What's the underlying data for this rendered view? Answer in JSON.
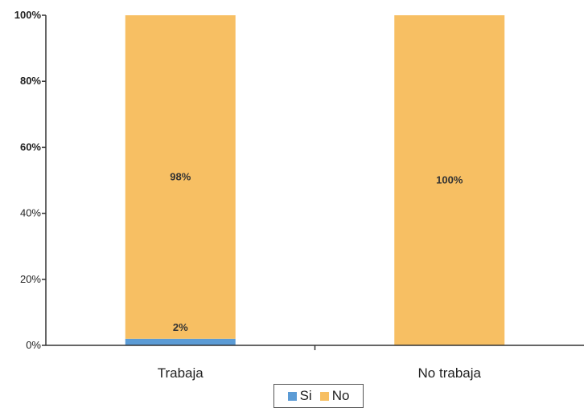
{
  "chart_data": {
    "type": "bar",
    "stacked": true,
    "categories": [
      "Trabaja",
      "No trabaja"
    ],
    "series": [
      {
        "name": "Si",
        "values": [
          2,
          0
        ],
        "color": "#5b9bd5"
      },
      {
        "name": "No",
        "values": [
          98,
          100
        ],
        "color": "#f7bf63"
      }
    ],
    "data_labels": [
      {
        "category": "Trabaja",
        "series": "Si",
        "text": "2%"
      },
      {
        "category": "Trabaja",
        "series": "No",
        "text": "98%"
      },
      {
        "category": "No trabaja",
        "series": "No",
        "text": "100%"
      }
    ],
    "yticks": [
      "0%",
      "20%",
      "40%",
      "60%",
      "80%",
      "100%"
    ],
    "ylim": [
      0,
      100
    ],
    "title": "",
    "xlabel": "",
    "ylabel": "",
    "grid": false,
    "legend_position": "bottom"
  }
}
